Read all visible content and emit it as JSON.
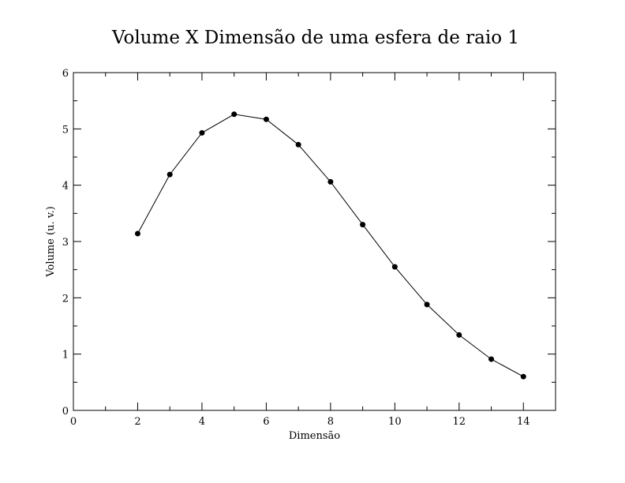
{
  "chart_data": {
    "type": "line",
    "title": "Volume X Dimensão de uma esfera de raio 1",
    "xlabel": "Dimensão",
    "ylabel": "Volume (u. v.)",
    "xlim": [
      0,
      15
    ],
    "ylim": [
      0,
      6
    ],
    "x_major_ticks": [
      0,
      2,
      4,
      6,
      8,
      10,
      12,
      14
    ],
    "x_minor_ticks": [
      1,
      3,
      5,
      7,
      9,
      11,
      13
    ],
    "y_major_ticks": [
      0,
      1,
      2,
      3,
      4,
      5,
      6
    ],
    "y_minor_ticks": [
      0.5,
      1.5,
      2.5,
      3.5,
      4.5,
      5.5
    ],
    "grid": false,
    "series": [
      {
        "x": [
          2,
          3,
          4,
          5,
          6,
          7,
          8,
          9,
          10,
          11,
          12,
          13,
          14
        ],
        "y": [
          3.14,
          4.19,
          4.93,
          5.26,
          5.17,
          4.72,
          4.06,
          3.3,
          2.55,
          1.88,
          1.34,
          0.91,
          0.6
        ],
        "color": "#000000",
        "marker": "filled-circle"
      }
    ]
  }
}
